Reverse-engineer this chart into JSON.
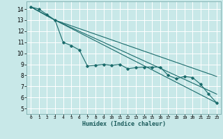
{
  "xlabel": "Humidex (Indice chaleur)",
  "background_color": "#c8e8e8",
  "grid_color": "#ffffff",
  "grid_minor_color": "#ddf0f0",
  "line_color": "#1a6b6b",
  "xlim": [
    -0.5,
    23.5
  ],
  "ylim": [
    4.5,
    14.7
  ],
  "yticks": [
    5,
    6,
    7,
    8,
    9,
    10,
    11,
    12,
    13,
    14
  ],
  "xticks": [
    0,
    1,
    2,
    3,
    4,
    5,
    6,
    7,
    8,
    9,
    10,
    11,
    12,
    13,
    14,
    15,
    16,
    17,
    18,
    19,
    20,
    21,
    22,
    23
  ],
  "series": [
    {
      "x": [
        0,
        1,
        2,
        3,
        4,
        5,
        6,
        7,
        8,
        9,
        10,
        11,
        12,
        13,
        14,
        15,
        16,
        17,
        18,
        19,
        20,
        21,
        22,
        23
      ],
      "y": [
        14.2,
        14.0,
        13.5,
        13.0,
        11.0,
        10.7,
        10.3,
        8.85,
        8.9,
        9.0,
        8.9,
        9.0,
        8.6,
        8.7,
        8.75,
        8.75,
        8.75,
        8.0,
        7.7,
        7.9,
        7.8,
        7.2,
        6.3,
        5.5
      ],
      "marker": true
    },
    {
      "x": [
        0,
        3,
        23
      ],
      "y": [
        14.2,
        13.0,
        5.5
      ],
      "marker": false
    },
    {
      "x": [
        0,
        3,
        23
      ],
      "y": [
        14.2,
        13.0,
        6.3
      ],
      "marker": false
    },
    {
      "x": [
        0,
        3,
        23
      ],
      "y": [
        14.2,
        13.0,
        7.9
      ],
      "marker": false
    }
  ]
}
